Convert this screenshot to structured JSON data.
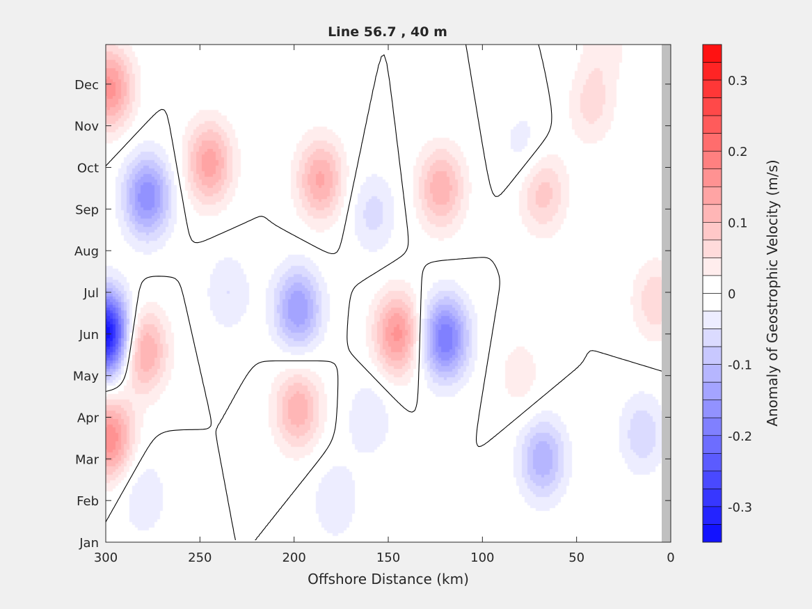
{
  "chart_data": {
    "type": "heatmap",
    "subtype": "filled-contour",
    "title": "Line 56.7 , 40 m",
    "xlabel": "Offshore Distance (km)",
    "ylabel": "",
    "xlim": [
      300,
      0
    ],
    "x_reversed": true,
    "xticks": [
      300,
      250,
      200,
      150,
      100,
      50,
      0
    ],
    "yticks": [
      "Jan",
      "Feb",
      "Mar",
      "Apr",
      "May",
      "Jun",
      "Jul",
      "Aug",
      "Sep",
      "Oct",
      "Nov",
      "Dec"
    ],
    "ylim_months": [
      0,
      11.95
    ],
    "colorbar": {
      "label": "Anomaly of Geostrophic Velocity (m/s)",
      "range": [
        -0.35,
        0.35
      ],
      "step": 0.025,
      "ticks": [
        "0.3",
        "0.2",
        "0.1",
        "0",
        "-0.1",
        "-0.2",
        "-0.3"
      ],
      "tick_values": [
        0.3,
        0.2,
        0.1,
        0,
        -0.1,
        -0.2,
        -0.3
      ],
      "negative_color": "#0000ff",
      "positive_color": "#ff0000",
      "zero_color": "#ffffff"
    },
    "zero_contour_color": "#000000",
    "land_mask_color": "#c0c0c0",
    "features": [
      {
        "x_km": 300,
        "month": 5.0,
        "value": -0.35
      },
      {
        "x_km": 278,
        "month": 8.3,
        "value": -0.17
      },
      {
        "x_km": 198,
        "month": 5.6,
        "value": -0.15
      },
      {
        "x_km": 120,
        "month": 4.9,
        "value": -0.2
      },
      {
        "x_km": 68,
        "month": 2.0,
        "value": -0.12
      },
      {
        "x_km": 235,
        "month": 6.0,
        "value": -0.05
      },
      {
        "x_km": 158,
        "month": 7.9,
        "value": -0.06
      },
      {
        "x_km": 15,
        "month": 2.6,
        "value": -0.07
      },
      {
        "x_km": 78,
        "month": 9.5,
        "value": -0.04
      },
      {
        "x_km": 178,
        "month": 1.0,
        "value": -0.05
      },
      {
        "x_km": 160,
        "month": 3.0,
        "value": -0.05
      },
      {
        "x_km": 280,
        "month": 1.1,
        "value": -0.05
      },
      {
        "x_km": 298,
        "month": 10.9,
        "value": 0.16
      },
      {
        "x_km": 298,
        "month": 2.5,
        "value": 0.17
      },
      {
        "x_km": 280,
        "month": 4.6,
        "value": 0.14
      },
      {
        "x_km": 245,
        "month": 9.1,
        "value": 0.14
      },
      {
        "x_km": 186,
        "month": 8.7,
        "value": 0.13
      },
      {
        "x_km": 145,
        "month": 5.0,
        "value": 0.16
      },
      {
        "x_km": 198,
        "month": 3.2,
        "value": 0.12
      },
      {
        "x_km": 122,
        "month": 8.5,
        "value": 0.12
      },
      {
        "x_km": 68,
        "month": 8.4,
        "value": 0.09
      },
      {
        "x_km": 42,
        "month": 10.5,
        "value": 0.06
      },
      {
        "x_km": 8,
        "month": 5.8,
        "value": 0.07
      },
      {
        "x_km": 80,
        "month": 4.0,
        "value": 0.04
      },
      {
        "x_km": 35,
        "month": 12.0,
        "value": 0.04
      }
    ]
  }
}
